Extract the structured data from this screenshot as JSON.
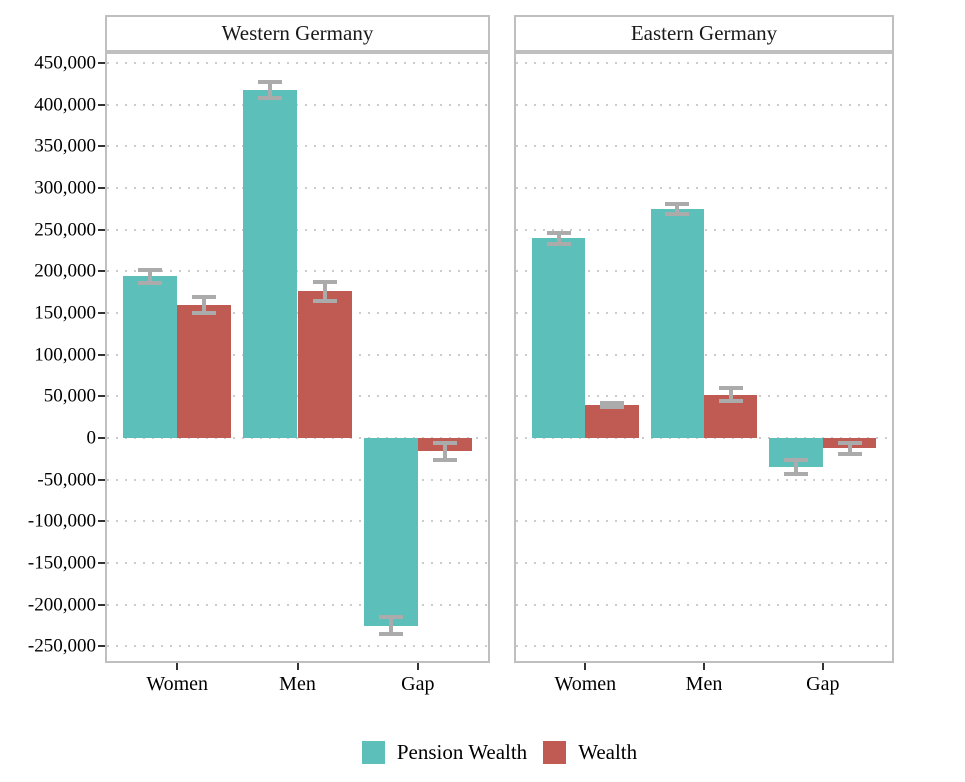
{
  "chart_data": {
    "type": "bar",
    "title": "",
    "categories": [
      "Women",
      "Men",
      "Gap"
    ],
    "panels": [
      {
        "title": "Western Germany",
        "series": [
          {
            "name": "Pension Wealth",
            "values": [
              194000,
              418000,
              -225000
            ],
            "errors": [
              10000,
              12000,
              13000
            ]
          },
          {
            "name": "Wealth",
            "values": [
              160000,
              176000,
              -16000
            ],
            "errors": [
              12000,
              14000,
              13000
            ]
          }
        ]
      },
      {
        "title": "Eastern Germany",
        "series": [
          {
            "name": "Pension Wealth",
            "values": [
              240000,
              275000,
              -35000
            ],
            "errors": [
              9000,
              8000,
              11000
            ]
          },
          {
            "name": "Wealth",
            "values": [
              40000,
              52000,
              -12000
            ],
            "errors": [
              5000,
              10000,
              9000
            ]
          }
        ]
      }
    ],
    "y_axis": {
      "min": -250000,
      "max": 450000,
      "tick_step": 50000,
      "ticks": [
        450000,
        400000,
        350000,
        300000,
        250000,
        200000,
        150000,
        100000,
        50000,
        0,
        -50000,
        -100000,
        -150000,
        -200000,
        -250000
      ],
      "tick_labels": [
        "450,000",
        "400,000",
        "350,000",
        "300,000",
        "250,000",
        "200,000",
        "150,000",
        "100,000",
        "50,000",
        "0",
        "-50,000",
        "-100,000",
        "-150,000",
        "-200,000",
        "-250,000"
      ],
      "grid": "dotted"
    },
    "legend": [
      {
        "label": "Pension Wealth",
        "color": "#5cbfba"
      },
      {
        "label": "Wealth",
        "color": "#bf5b52"
      }
    ],
    "colors": {
      "pension_wealth": "#5cbfba",
      "wealth": "#bf5b52",
      "error_bar": "#ababab",
      "panel_border": "#bfbfbf",
      "gridline": "#cccccc",
      "tick": "#333333"
    },
    "error_bars": true,
    "legend_position": "bottom"
  }
}
